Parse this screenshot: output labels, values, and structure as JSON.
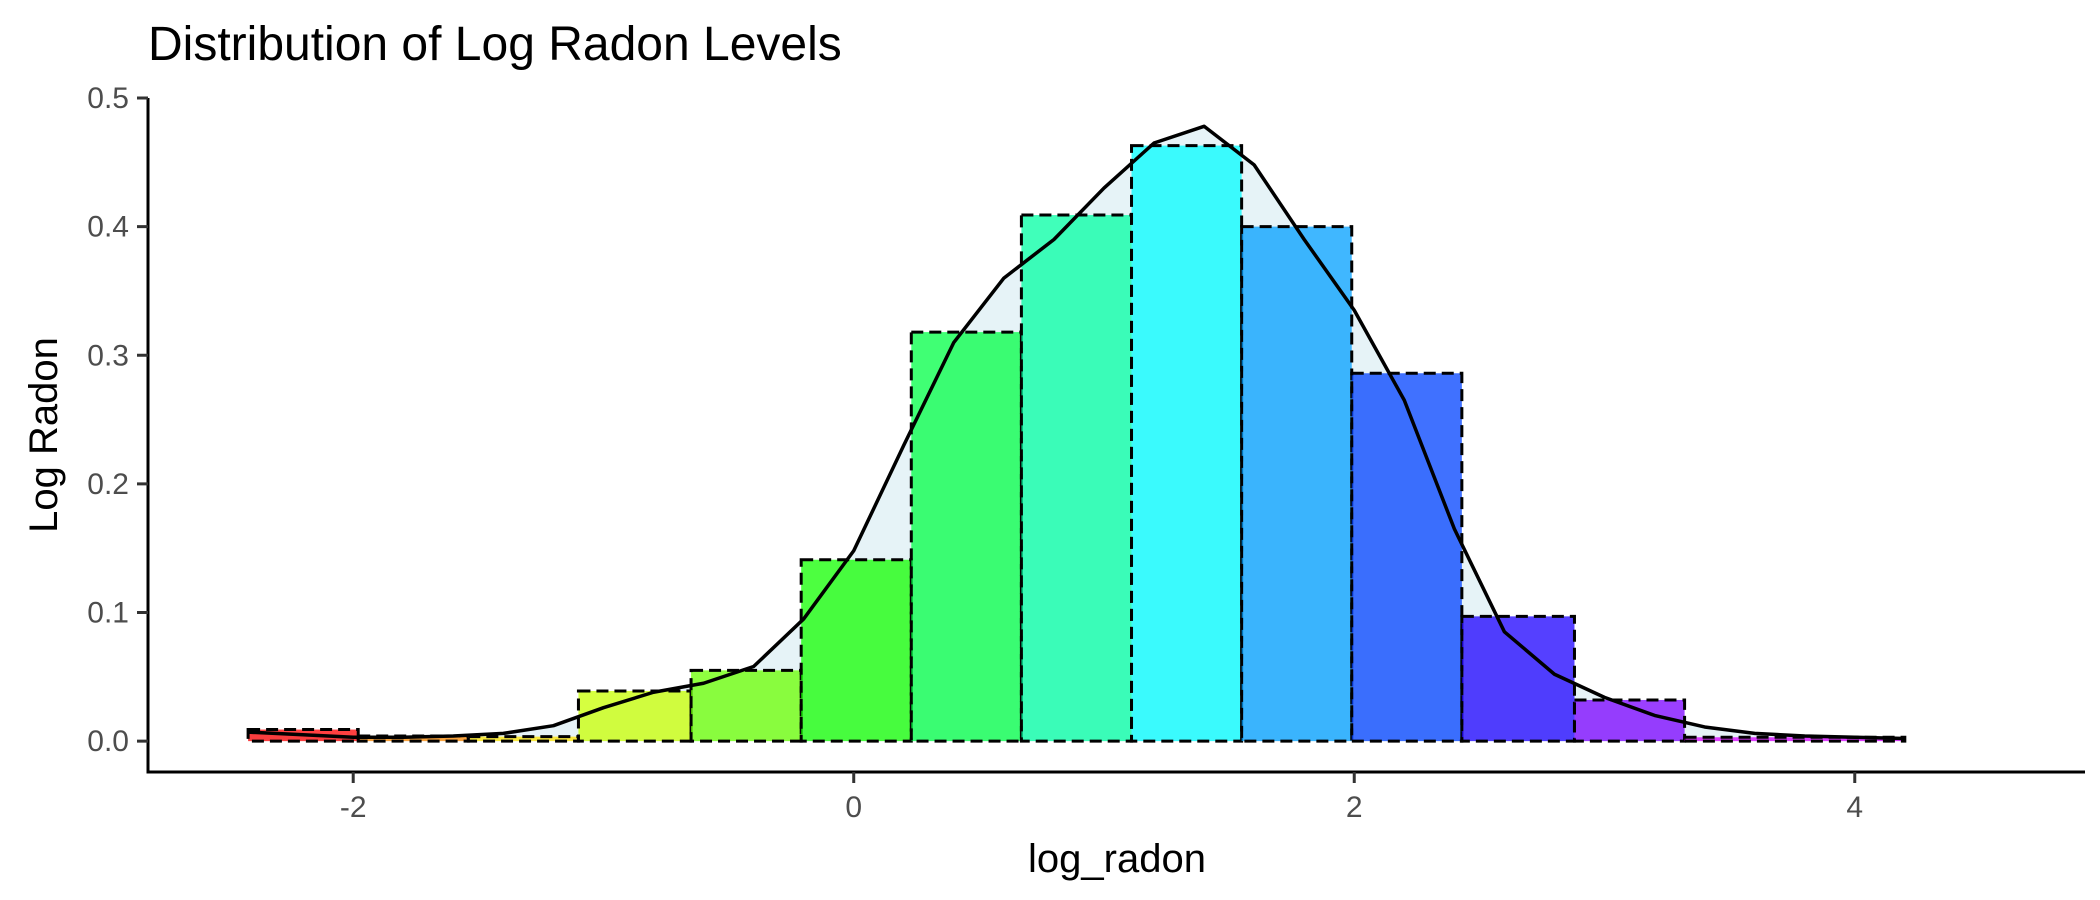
{
  "chart_data": {
    "type": "bar",
    "title": "Distribution of Log Radon Levels",
    "xlabel": "log_radon",
    "ylabel": "Log Radon",
    "xlim": [
      -2.82,
      4.92
    ],
    "ylim": [
      -0.024,
      0.5
    ],
    "x_ticks": [
      -2,
      0,
      2,
      4
    ],
    "y_ticks": [
      0.0,
      0.1,
      0.2,
      0.3,
      0.4,
      0.5
    ],
    "x_tick_labels": [
      "-2",
      "0",
      "2",
      "4"
    ],
    "y_tick_labels": [
      "0.0",
      "0.1",
      "0.2",
      "0.3",
      "0.4",
      "0.5"
    ],
    "grid": false,
    "legend": "none",
    "histogram": {
      "bin_edges": [
        -2.42,
        -1.98,
        -1.54,
        -1.1,
        -0.65,
        -0.21,
        0.23,
        0.67,
        1.11,
        1.55,
        1.99,
        2.43,
        2.88,
        3.32,
        4.2
      ],
      "density": [
        0.009,
        0.004,
        0.0035,
        0.039,
        0.055,
        0.141,
        0.318,
        0.409,
        0.463,
        0.4,
        0.286,
        0.097,
        0.032,
        0.003
      ],
      "fill_colors": [
        "#ff0000",
        "#ff8800",
        "#ffe500",
        "#c8ff00",
        "#6aff00",
        "#11ff00",
        "#00ff45",
        "#00ffa3",
        "#00fcff",
        "#009fff",
        "#0041ff",
        "#1c00ff",
        "#7a00ff",
        "#d800ff"
      ],
      "fill_opacity": 0.75,
      "border_style": "dashed",
      "border_color": "#000000"
    },
    "density_curve": {
      "x": [
        -2.42,
        -2.2,
        -2.0,
        -1.8,
        -1.6,
        -1.4,
        -1.2,
        -1.0,
        -0.8,
        -0.6,
        -0.4,
        -0.2,
        0.0,
        0.2,
        0.4,
        0.6,
        0.8,
        1.0,
        1.2,
        1.4,
        1.6,
        1.8,
        2.0,
        2.2,
        2.4,
        2.6,
        2.8,
        3.0,
        3.2,
        3.4,
        3.6,
        3.8,
        4.0,
        4.2
      ],
      "y": [
        0.007,
        0.005,
        0.003,
        0.003,
        0.004,
        0.006,
        0.012,
        0.026,
        0.038,
        0.045,
        0.058,
        0.095,
        0.148,
        0.23,
        0.31,
        0.36,
        0.39,
        0.43,
        0.465,
        0.478,
        0.448,
        0.39,
        0.335,
        0.265,
        0.165,
        0.085,
        0.052,
        0.034,
        0.02,
        0.011,
        0.006,
        0.004,
        0.003,
        0.002
      ],
      "color": "#000000",
      "fill": "#add8e6",
      "fill_opacity": 0.3
    }
  }
}
